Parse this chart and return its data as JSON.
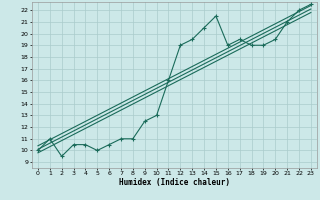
{
  "bg_color": "#cce8e8",
  "grid_color": "#aacccc",
  "line_color": "#1a6b5a",
  "xlabel": "Humidex (Indice chaleur)",
  "xlim": [
    -0.5,
    23.5
  ],
  "ylim": [
    8.5,
    22.7
  ],
  "xticks": [
    0,
    1,
    2,
    3,
    4,
    5,
    6,
    7,
    8,
    9,
    10,
    11,
    12,
    13,
    14,
    15,
    16,
    17,
    18,
    19,
    20,
    21,
    22,
    23
  ],
  "yticks": [
    9,
    10,
    11,
    12,
    13,
    14,
    15,
    16,
    17,
    18,
    19,
    20,
    21,
    22
  ],
  "data_x": [
    0,
    1,
    2,
    3,
    4,
    5,
    6,
    7,
    8,
    9,
    10,
    11,
    12,
    13,
    14,
    15,
    16,
    17,
    18,
    19,
    20,
    21,
    22,
    23
  ],
  "data_y": [
    10,
    11,
    9.5,
    10.5,
    10.5,
    10.0,
    10.5,
    11.0,
    11.0,
    12.5,
    13.0,
    16.0,
    19.0,
    19.5,
    20.5,
    21.5,
    19.0,
    19.5,
    19.0,
    19.0,
    19.5,
    21.0,
    22.0,
    22.5
  ],
  "diag_lines": [
    {
      "x0": 0,
      "y0": 9.8,
      "x1": 23,
      "y1": 21.8
    },
    {
      "x0": 0,
      "y0": 10.1,
      "x1": 23,
      "y1": 22.1
    },
    {
      "x0": 0,
      "y0": 10.4,
      "x1": 23,
      "y1": 22.4
    }
  ]
}
